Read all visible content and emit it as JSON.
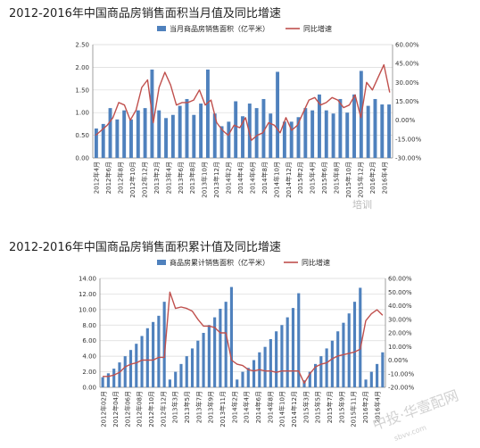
{
  "titles": {
    "chart1": "2012-2016年中国商品房销售面积当月值及同比增速",
    "chart2": "2012-2016年中国商品房销售面积累计值及同比增速"
  },
  "watermarks": {
    "w1": "培训",
    "w2": "中投·华壹配网",
    "w3": "sbvv.com"
  },
  "colors": {
    "bar": "#4f81bd",
    "line": "#c0504d"
  },
  "chart_data": [
    {
      "type": "bar",
      "title": "2012-2016年中国商品房销售面积当月值及同比增速",
      "legend": {
        "bar": "当月商品房销售面积（亿平米）",
        "line": "同比增速",
        "position": "top"
      },
      "ylim": [
        0,
        2.5
      ],
      "y_ticks": [
        "0.00",
        "0.50",
        "1.00",
        "1.50",
        "2.00",
        "2.50"
      ],
      "y2lim": [
        -30,
        60
      ],
      "y2_ticks": [
        "-30.00%",
        "-15.00%",
        "0.00%",
        "15.00%",
        "30.00%",
        "45.00%",
        "60.00%"
      ],
      "x_labels": [
        "2012年4月",
        "2012年6月",
        "2012年8月",
        "2012年10月",
        "2012年12月",
        "2013年2月",
        "2013年4月",
        "2013年6月",
        "2013年8月",
        "2013年10月",
        "2013年12月",
        "2014年2月",
        "2014年4月",
        "2014年6月",
        "2014年8月",
        "2014年10月",
        "2014年12月",
        "2015年2月",
        "2015年4月",
        "2015年6月",
        "2015年8月",
        "2015年10月",
        "2015年12月",
        "2016年2月",
        "2016年4月"
      ],
      "series": [
        {
          "name": "当月商品房销售面积（亿平米）",
          "kind": "bar",
          "values": [
            0.65,
            0.75,
            1.1,
            0.85,
            1.05,
            0.85,
            1.05,
            1.1,
            1.95,
            1.05,
            0.88,
            0.95,
            1.15,
            1.3,
            0.95,
            1.2,
            1.95,
            0.98,
            0.7,
            0.8,
            1.25,
            0.92,
            1.2,
            1.1,
            1.3,
            0.98,
            1.9,
            0.8,
            0.8,
            0.9,
            1.1,
            1.05,
            1.4,
            1.05,
            0.98,
            1.3,
            1.0,
            1.4,
            1.92,
            1.15,
            1.3,
            1.18,
            1.18
          ]
        },
        {
          "name": "同比增速",
          "kind": "line",
          "values": [
            -12,
            -8,
            -4,
            2,
            14,
            12,
            0,
            8,
            26,
            32,
            -2,
            26,
            38,
            28,
            12,
            14,
            14,
            16,
            24,
            12,
            16,
            -2,
            -8,
            -12,
            -4,
            -6,
            2,
            -16,
            -12,
            -10,
            -2,
            -4,
            -10,
            2,
            -8,
            -4,
            6,
            16,
            18,
            12,
            14,
            18,
            16,
            10,
            12,
            20,
            2,
            30,
            24,
            34,
            44,
            22
          ]
        }
      ]
    },
    {
      "type": "bar",
      "title": "2012-2016年中国商品房销售面积累计值及同比增速",
      "legend": {
        "bar": "商品房累计销售面积（亿平米）",
        "line": "同比增速",
        "position": "top"
      },
      "ylim": [
        0,
        14
      ],
      "y_ticks": [
        "0.00",
        "2.00",
        "4.00",
        "6.00",
        "8.00",
        "10.00",
        "12.00",
        "14.00"
      ],
      "y2lim": [
        -20,
        60
      ],
      "y2_ticks": [
        "-20.00%",
        "-10.00%",
        "0.00%",
        "10.00%",
        "20.00%",
        "30.00%",
        "40.00%",
        "50.00%",
        "60.00%"
      ],
      "x_labels": [
        "2012年02月",
        "2012年04月",
        "2012年06月",
        "2012年08月",
        "2012年10月",
        "2012年12月",
        "2013年3月",
        "2013年5月",
        "2013年7月",
        "2013年9月",
        "2013年11月",
        "2014年2月",
        "2014年4月",
        "2014年6月",
        "2014年8月",
        "2014年10月",
        "2014年12月",
        "2015年3月",
        "2015年5月",
        "2015年7月",
        "2015年9月",
        "2015年11月",
        "2016年2月",
        "2016年4月"
      ],
      "series": [
        {
          "name": "商品房累计销售面积（亿平米）",
          "kind": "bar",
          "values": [
            1.3,
            1.8,
            2.4,
            3.2,
            4.0,
            4.8,
            5.6,
            6.6,
            7.6,
            8.4,
            9.2,
            11.0,
            1.0,
            2.0,
            3.0,
            4.0,
            5.0,
            6.0,
            7.0,
            8.0,
            9.0,
            10.1,
            11.0,
            12.9,
            1.0,
            2.0,
            2.5,
            3.5,
            4.5,
            5.2,
            6.2,
            7.2,
            8.0,
            9.0,
            10.2,
            12.1,
            0.9,
            2.0,
            3.0,
            4.0,
            5.0,
            6.0,
            7.2,
            8.3,
            9.5,
            11.0,
            12.8,
            1.0,
            2.0,
            3.0,
            4.5
          ]
        },
        {
          "name": "同比增速",
          "kind": "line",
          "values": [
            -12,
            -12,
            -11,
            -9,
            -5,
            -3,
            -2,
            0,
            0,
            0,
            2,
            2,
            50,
            38,
            39,
            38,
            36,
            30,
            25,
            25,
            24,
            20,
            20,
            0,
            -3,
            -4,
            -7,
            -8,
            -7,
            -8,
            -8,
            -9,
            -8,
            -8,
            -8,
            -8,
            -17,
            -10,
            -5,
            -3,
            -2,
            1,
            3,
            4,
            5,
            6,
            8,
            29,
            34,
            37,
            33
          ]
        }
      ]
    }
  ]
}
